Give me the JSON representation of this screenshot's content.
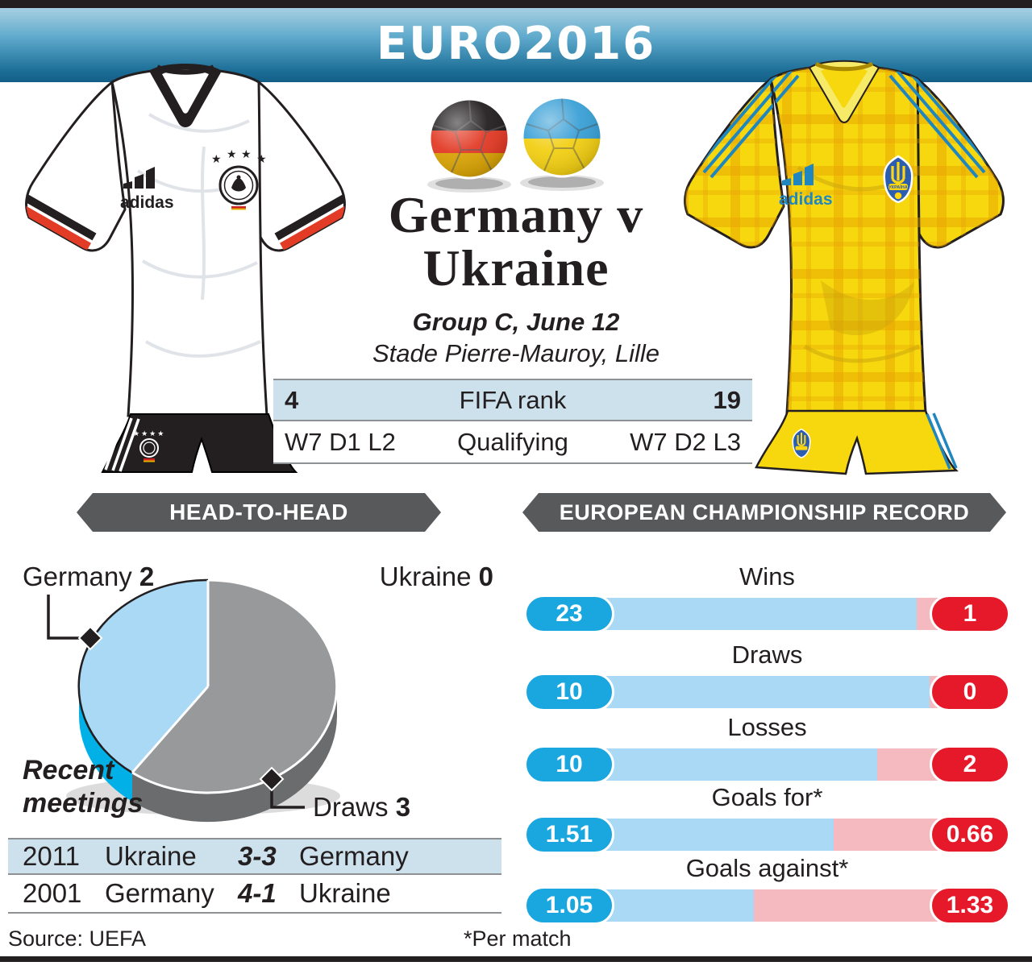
{
  "banner": {
    "logo_text": "EURO2016"
  },
  "match": {
    "title_line1": "Germany v",
    "title_line2": "Ukraine",
    "group_line": "Group C, June 12",
    "venue_line": "Stade Pierre-Mauroy, Lille"
  },
  "stats_rows": [
    {
      "left": "4",
      "label": "FIFA rank",
      "right": "19"
    },
    {
      "left": "W7 D1 L2",
      "label": "Qualifying",
      "right": "W7 D2 L3"
    }
  ],
  "section_titles": {
    "left": "HEAD-TO-HEAD",
    "right": "EUROPEAN CHAMPIONSHIP RECORD"
  },
  "head_to_head": {
    "germany_label": "Germany ",
    "germany_value": "2",
    "ukraine_label": "Ukraine ",
    "ukraine_value": "0",
    "draws_label": "Draws ",
    "draws_value": "3",
    "recent_line1": "Recent",
    "recent_line2": "meetings",
    "meetings": [
      {
        "year": "2011",
        "home": "Ukraine",
        "score": "3-3",
        "away": "Germany"
      },
      {
        "year": "2001",
        "home": "Germany",
        "score": "4-1",
        "away": "Ukraine"
      }
    ]
  },
  "chart_data": [
    {
      "type": "pie",
      "title": "HEAD-TO-HEAD",
      "slices": [
        {
          "label": "Germany",
          "value": 2,
          "color": "#a9d9f4"
        },
        {
          "label": "Draws",
          "value": 3,
          "color": "#97999b"
        },
        {
          "label": "Ukraine",
          "value": 0,
          "color": "#ffffff"
        }
      ],
      "legend_position": "around",
      "style": "3d"
    },
    {
      "type": "bar",
      "title": "EUROPEAN CHAMPIONSHIP RECORD",
      "categories": [
        "Wins",
        "Draws",
        "Losses",
        "Goals for*",
        "Goals against*"
      ],
      "series": [
        {
          "name": "Germany",
          "color": "#1aa7e0",
          "values": [
            23,
            10,
            10,
            1.51,
            1.05
          ]
        },
        {
          "name": "Ukraine",
          "color": "#e6192b",
          "values": [
            1,
            0,
            2,
            0.66,
            1.33
          ]
        }
      ],
      "layout": "paired horizontal pills, blue vs red, track split proportional to values"
    }
  ],
  "record_bars": [
    {
      "label": "Wins",
      "germany": "23",
      "ukraine": "1"
    },
    {
      "label": "Draws",
      "germany": "10",
      "ukraine": "0"
    },
    {
      "label": "Losses",
      "germany": "10",
      "ukraine": "2"
    },
    {
      "label": "Goals for*",
      "germany": "1.51",
      "ukraine": "0.66"
    },
    {
      "label": "Goals against*",
      "germany": "1.05",
      "ukraine": "1.33"
    }
  ],
  "footer": {
    "source": "Source: UEFA",
    "note": "*Per match"
  },
  "kits": {
    "germany": {
      "brand": "adidas"
    },
    "ukraine": {
      "brand": "adidas",
      "crest_text": "УКРАЇНА"
    }
  },
  "colors": {
    "banner_top": "#a6d0e2",
    "banner_bottom": "#135e86",
    "ribbon_grey": "#58595b",
    "row_blue": "#cde1ec",
    "bar_track_blue": "#a9d9f4",
    "bar_track_pink": "#f5bac0",
    "pill_blue": "#1aa7e0",
    "pill_red": "#e6192b",
    "pie_blue": "#a9d9f4",
    "pie_blue_side": "#00b0e6",
    "pie_grey": "#97999b",
    "pie_grey_side": "#6b6c6e"
  }
}
